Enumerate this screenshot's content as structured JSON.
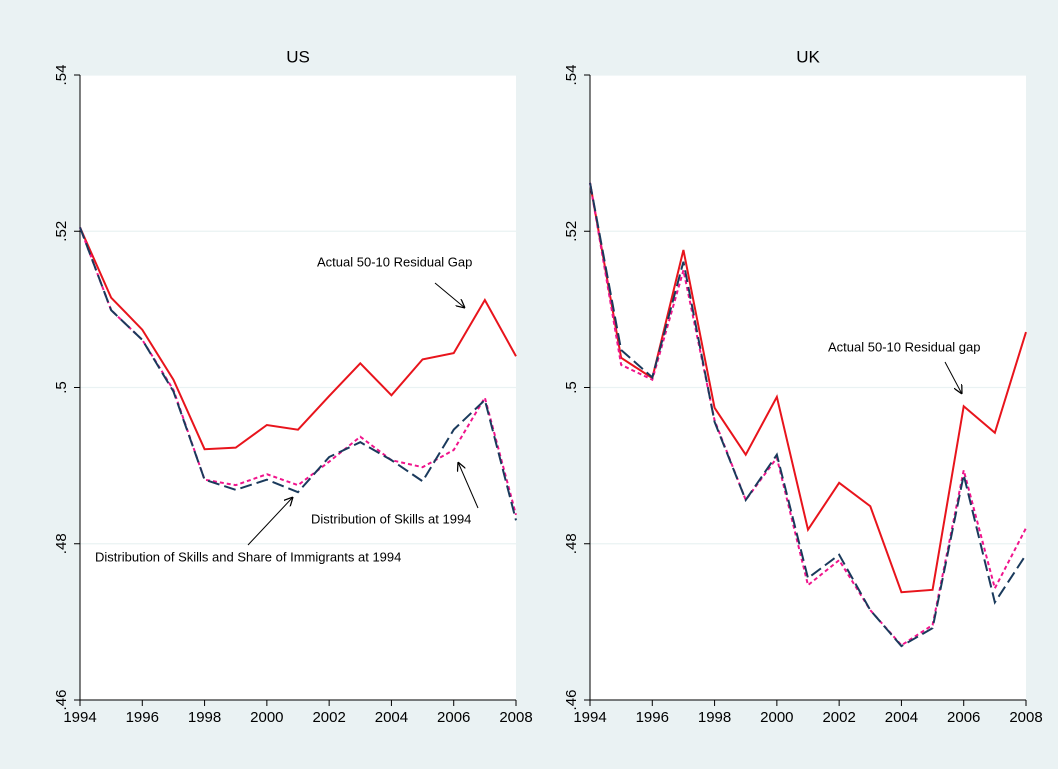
{
  "chart_data": [
    {
      "type": "line",
      "title": "US",
      "x": [
        1994,
        1995,
        1996,
        1997,
        1998,
        1999,
        2000,
        2001,
        2002,
        2003,
        2004,
        2005,
        2006,
        2007,
        2008
      ],
      "xlim": [
        1994,
        2008
      ],
      "xticks": [
        1994,
        1996,
        1998,
        2000,
        2002,
        2004,
        2006,
        2008
      ],
      "ylim": [
        0.46,
        0.54
      ],
      "yticks": [
        {
          "value": 0.46,
          "label": ".46"
        },
        {
          "value": 0.48,
          "label": ".48"
        },
        {
          "value": 0.5,
          "label": ".5"
        },
        {
          "value": 0.52,
          "label": ".52"
        },
        {
          "value": 0.54,
          "label": ".54"
        }
      ],
      "grid": true,
      "series": [
        {
          "name": "Actual 50-10 Residual Gap",
          "color": "#e8141c",
          "dash": "solid",
          "values": [
            0.5205,
            0.5115,
            0.5074,
            0.501,
            0.4921,
            0.4923,
            0.4952,
            0.4946,
            0.4989,
            0.5031,
            0.499,
            0.5036,
            0.5044,
            0.5112,
            0.504
          ]
        },
        {
          "name": "Distribution of Skills at 1994",
          "color": "#f0148c",
          "dash": "dotted",
          "values": [
            0.5205,
            0.5099,
            0.5061,
            0.4997,
            0.4882,
            0.4875,
            0.4889,
            0.4875,
            0.4905,
            0.4937,
            0.4907,
            0.4898,
            0.492,
            0.4987,
            0.4837
          ]
        },
        {
          "name": "Distribution of Skills and Share of Immigrants at 1994",
          "color": "#1a3a5c",
          "dash": "dashed",
          "values": [
            0.5205,
            0.5099,
            0.5061,
            0.4995,
            0.4882,
            0.4869,
            0.4882,
            0.4866,
            0.4911,
            0.493,
            0.4907,
            0.488,
            0.4946,
            0.4984,
            0.483
          ]
        }
      ]
    },
    {
      "type": "line",
      "title": "UK",
      "x": [
        1994,
        1995,
        1996,
        1997,
        1998,
        1999,
        2000,
        2001,
        2002,
        2003,
        2004,
        2005,
        2006,
        2007,
        2008
      ],
      "xlim": [
        1994,
        2008
      ],
      "xticks": [
        1994,
        1996,
        1998,
        2000,
        2002,
        2004,
        2006,
        2008
      ],
      "ylim": [
        0.46,
        0.54
      ],
      "yticks": [
        {
          "value": 0.46,
          "label": ".46"
        },
        {
          "value": 0.48,
          "label": ".48"
        },
        {
          "value": 0.5,
          "label": ".5"
        },
        {
          "value": 0.52,
          "label": ".52"
        },
        {
          "value": 0.54,
          "label": ".54"
        }
      ],
      "grid": true,
      "series": [
        {
          "name": "Actual 50-10 Residual gap",
          "color": "#e8141c",
          "dash": "solid",
          "values": [
            0.5262,
            0.5038,
            0.5012,
            0.5176,
            0.4974,
            0.4914,
            0.4988,
            0.4818,
            0.4878,
            0.4848,
            0.4738,
            0.4741,
            0.4976,
            0.4942,
            0.5071
          ]
        },
        {
          "color": "#f0148c",
          "dash": "dotted",
          "values": [
            0.5262,
            0.5029,
            0.501,
            0.515,
            0.4958,
            0.4856,
            0.491,
            0.4747,
            0.4779,
            0.4715,
            0.467,
            0.4696,
            0.4894,
            0.4743,
            0.482
          ]
        },
        {
          "color": "#1a3a5c",
          "dash": "dashed",
          "values": [
            0.5262,
            0.5048,
            0.5013,
            0.5161,
            0.4956,
            0.4856,
            0.4914,
            0.4756,
            0.4786,
            0.4715,
            0.4669,
            0.4692,
            0.4888,
            0.4725,
            0.4786
          ]
        }
      ]
    }
  ]
}
